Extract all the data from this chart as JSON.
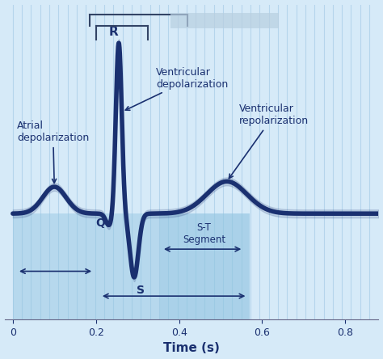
{
  "bg_color": "#d6eaf8",
  "ecg_color": "#1a3070",
  "ecg_linewidth": 4.0,
  "stripe_color": "#7ab0d8",
  "stripe_alpha": 0.3,
  "highlight_color": "#90c4e0",
  "xlim": [
    -0.02,
    0.88
  ],
  "ylim": [
    -1.5,
    3.2
  ],
  "xlabel": "Time (s)",
  "xlabel_fontsize": 11,
  "tick_fontsize": 9,
  "annotation_color": "#1a3070",
  "annotation_fontsize": 9,
  "bracket_color": "#334466",
  "blurred_box_color": "#b8cfe0",
  "baseline_y": 0.08
}
